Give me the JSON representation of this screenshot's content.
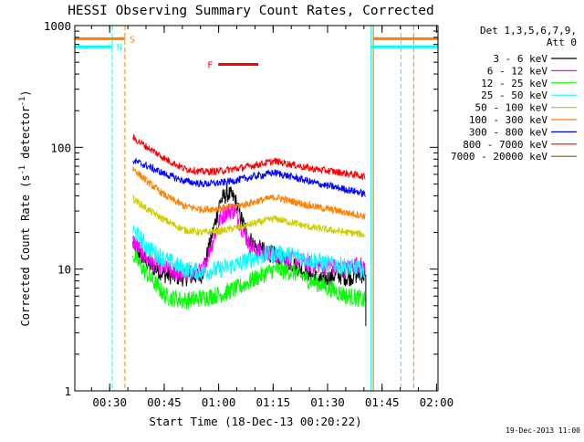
{
  "chart_data": {
    "type": "line",
    "title": "HESSI Observing Summary Count Rates, Corrected",
    "xlabel": "Start Time (18-Dec-13 00:20:22)",
    "ylabel_parts": [
      "Corrected Count Rate (s",
      "-1",
      " detector",
      "-1",
      ")"
    ],
    "x_unit": "minutes from 00:20:22",
    "xlim": [
      0,
      100
    ],
    "ylim": [
      1,
      1000
    ],
    "yscale": "log",
    "x_ticks": [
      {
        "x": 9.6,
        "label": "00:30"
      },
      {
        "x": 24.6,
        "label": "00:45"
      },
      {
        "x": 39.6,
        "label": "01:00"
      },
      {
        "x": 54.6,
        "label": "01:15"
      },
      {
        "x": 69.6,
        "label": "01:30"
      },
      {
        "x": 84.6,
        "label": "01:45"
      },
      {
        "x": 99.6,
        "label": "02:00"
      }
    ],
    "y_ticks": [
      {
        "y": 1,
        "label": "1"
      },
      {
        "y": 10,
        "label": "10"
      },
      {
        "y": 100,
        "label": "100"
      },
      {
        "y": 1000,
        "label": "1000"
      }
    ],
    "legend_title": [
      "Det 1,3,5,6,7,9,",
      "Att 0"
    ],
    "legend_position": "right",
    "series": [
      {
        "name": "3 - 6 keV",
        "color": "#000000",
        "points": [
          [
            16,
            16
          ],
          [
            20,
            11
          ],
          [
            25,
            9
          ],
          [
            30,
            8.5
          ],
          [
            35,
            9
          ],
          [
            38,
            20
          ],
          [
            40,
            36
          ],
          [
            42,
            42
          ],
          [
            44,
            38
          ],
          [
            46,
            25
          ],
          [
            48,
            18
          ],
          [
            50,
            15
          ],
          [
            55,
            13
          ],
          [
            60,
            11
          ],
          [
            65,
            9
          ],
          [
            68,
            8
          ],
          [
            70,
            8.5
          ],
          [
            72,
            9
          ],
          [
            75,
            8.5
          ],
          [
            78,
            9
          ],
          [
            80,
            9
          ]
        ]
      },
      {
        "name": "6 - 12 keV",
        "color": "#ff00ff",
        "points": [
          [
            16,
            17
          ],
          [
            20,
            12
          ],
          [
            25,
            10
          ],
          [
            30,
            9
          ],
          [
            35,
            9.5
          ],
          [
            38,
            17
          ],
          [
            40,
            26
          ],
          [
            42,
            30
          ],
          [
            44,
            30
          ],
          [
            46,
            22
          ],
          [
            48,
            16
          ],
          [
            50,
            14
          ],
          [
            55,
            13
          ],
          [
            60,
            12
          ],
          [
            65,
            11
          ],
          [
            70,
            10.5
          ],
          [
            75,
            10
          ],
          [
            78,
            11
          ],
          [
            80,
            10
          ]
        ]
      },
      {
        "name": "12 - 25 keV",
        "color": "#00ff00",
        "points": [
          [
            16,
            13
          ],
          [
            20,
            9
          ],
          [
            25,
            6
          ],
          [
            30,
            5.5
          ],
          [
            35,
            5.8
          ],
          [
            40,
            6.2
          ],
          [
            45,
            7
          ],
          [
            50,
            8.5
          ],
          [
            55,
            10
          ],
          [
            60,
            9.5
          ],
          [
            65,
            8
          ],
          [
            70,
            7
          ],
          [
            75,
            6
          ],
          [
            78,
            5.8
          ],
          [
            80,
            5.5
          ]
        ]
      },
      {
        "name": "25 - 50 keV",
        "color": "#00ffff",
        "points": [
          [
            16,
            21
          ],
          [
            20,
            15
          ],
          [
            25,
            12
          ],
          [
            30,
            10
          ],
          [
            35,
            9.5
          ],
          [
            40,
            10
          ],
          [
            45,
            11
          ],
          [
            50,
            12.5
          ],
          [
            55,
            13.5
          ],
          [
            60,
            13
          ],
          [
            65,
            12
          ],
          [
            70,
            11
          ],
          [
            75,
            10.5
          ],
          [
            78,
            10
          ],
          [
            80,
            9.5
          ]
        ]
      },
      {
        "name": "50 - 100 keV",
        "color": "#cccc00",
        "points": [
          [
            16,
            38
          ],
          [
            20,
            31
          ],
          [
            25,
            25
          ],
          [
            30,
            21
          ],
          [
            35,
            20
          ],
          [
            40,
            20.5
          ],
          [
            45,
            22
          ],
          [
            50,
            24
          ],
          [
            55,
            26
          ],
          [
            60,
            24
          ],
          [
            65,
            22
          ],
          [
            70,
            21
          ],
          [
            75,
            20
          ],
          [
            78,
            19.5
          ],
          [
            80,
            19
          ]
        ]
      },
      {
        "name": "100 - 300 keV",
        "color": "#ff8000",
        "points": [
          [
            16,
            67
          ],
          [
            20,
            52
          ],
          [
            25,
            40
          ],
          [
            30,
            33
          ],
          [
            35,
            31
          ],
          [
            40,
            31.5
          ],
          [
            45,
            33
          ],
          [
            50,
            36
          ],
          [
            55,
            39
          ],
          [
            60,
            36
          ],
          [
            65,
            33
          ],
          [
            70,
            31
          ],
          [
            75,
            29
          ],
          [
            78,
            28
          ],
          [
            80,
            27
          ]
        ]
      },
      {
        "name": "300 - 800 keV",
        "color": "#0000ff",
        "points": [
          [
            16,
            78
          ],
          [
            20,
            70
          ],
          [
            25,
            60
          ],
          [
            30,
            53
          ],
          [
            35,
            50
          ],
          [
            40,
            51
          ],
          [
            45,
            54
          ],
          [
            50,
            58
          ],
          [
            55,
            62
          ],
          [
            60,
            57
          ],
          [
            65,
            52
          ],
          [
            70,
            48
          ],
          [
            75,
            45
          ],
          [
            78,
            43
          ],
          [
            80,
            41
          ]
        ]
      },
      {
        "name": "800 - 7000 keV",
        "color": "#ff0000",
        "points": [
          [
            16,
            120
          ],
          [
            20,
            100
          ],
          [
            25,
            80
          ],
          [
            30,
            67
          ],
          [
            35,
            63
          ],
          [
            40,
            64
          ],
          [
            45,
            67
          ],
          [
            50,
            72
          ],
          [
            55,
            77
          ],
          [
            60,
            72
          ],
          [
            65,
            67
          ],
          [
            70,
            64
          ],
          [
            75,
            61
          ],
          [
            78,
            59
          ],
          [
            80,
            57
          ]
        ]
      },
      {
        "name": "7000 - 20000 keV",
        "color": "#806000",
        "points": []
      }
    ],
    "flags": [
      {
        "label": "S",
        "color": "#ff8000",
        "x_start": 0,
        "x_end": 13.8,
        "y": 780
      },
      {
        "label": "N",
        "color": "#00ffff",
        "x_start": 0,
        "x_end": 10.3,
        "y": 670
      },
      {
        "label": "F",
        "color": "#ff0000",
        "x_start": 39.5,
        "x_end": 50.5,
        "y": 480
      }
    ],
    "transitions": [
      {
        "x": 10.3,
        "color": "#00ffff"
      },
      {
        "x": 13.8,
        "color": "#ff8000"
      },
      {
        "x": 89.8,
        "color": "#00ffff"
      },
      {
        "x": 93.3,
        "color": "#ff8000"
      }
    ],
    "data_gap_edges": [
      {
        "x": 81.6,
        "color": "#00ffff"
      },
      {
        "x": 82.2,
        "color": "#ff8000"
      }
    ],
    "right_flags": [
      {
        "color": "#ff8000",
        "x_start": 82.2,
        "x_end": 100,
        "y": 780
      },
      {
        "color": "#00ffff",
        "x_start": 81.6,
        "x_end": 100,
        "y": 670
      }
    ]
  },
  "footer": {
    "timestamp": "19-Dec-2013 11:00"
  }
}
